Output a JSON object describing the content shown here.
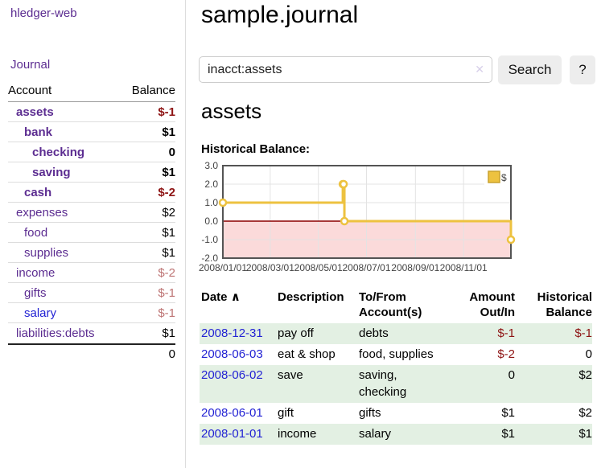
{
  "app": {
    "title": "hledger-web"
  },
  "sidebar": {
    "journal_label": "Journal",
    "accounts_table": {
      "account_header": "Account",
      "balance_header": "Balance",
      "rows": [
        {
          "name": "assets",
          "level": 1,
          "bold": true,
          "link_state": "visited",
          "balance": "$-1",
          "balance_class": "negstrong"
        },
        {
          "name": "bank",
          "level": 2,
          "bold": true,
          "link_state": "visited",
          "balance": "$1",
          "balance_class": ""
        },
        {
          "name": "checking",
          "level": 3,
          "bold": true,
          "link_state": "visited",
          "balance": "0",
          "balance_class": ""
        },
        {
          "name": "saving",
          "level": 3,
          "bold": true,
          "link_state": "visited",
          "balance": "$1",
          "balance_class": ""
        },
        {
          "name": "cash",
          "level": 2,
          "bold": true,
          "link_state": "visited",
          "balance": "$-2",
          "balance_class": "negstrong"
        },
        {
          "name": "expenses",
          "level": 1,
          "bold": false,
          "link_state": "visited",
          "balance": "$2",
          "balance_class": ""
        },
        {
          "name": "food",
          "level": 2,
          "bold": false,
          "link_state": "visited",
          "balance": "$1",
          "balance_class": ""
        },
        {
          "name": "supplies",
          "level": 2,
          "bold": false,
          "link_state": "visited",
          "balance": "$1",
          "balance_class": ""
        },
        {
          "name": "income",
          "level": 1,
          "bold": false,
          "link_state": "visited",
          "balance": "$-2",
          "balance_class": "negmuted"
        },
        {
          "name": "gifts",
          "level": 2,
          "bold": false,
          "link_state": "visited",
          "balance": "$-1",
          "balance_class": "negmuted"
        },
        {
          "name": "salary",
          "level": 2,
          "bold": false,
          "link_state": "unvisited",
          "balance": "$-1",
          "balance_class": "negmuted"
        },
        {
          "name": "liabilities:debts",
          "level": 1,
          "bold": false,
          "link_state": "visited",
          "balance": "$1",
          "balance_class": ""
        }
      ],
      "total": "0"
    }
  },
  "main": {
    "title": "sample.journal",
    "search": {
      "value": "inacct:assets",
      "clear_icon": "✕",
      "button_label": "Search",
      "help_label": "?"
    },
    "account_heading": "assets",
    "chart_label": "Historical Balance:"
  },
  "chart_data": {
    "type": "line",
    "step": true,
    "title": "Historical Balance:",
    "series": [
      {
        "name": "$",
        "color": "#edc240",
        "points": [
          [
            "2008-01-01",
            1
          ],
          [
            "2008-06-01",
            2
          ],
          [
            "2008-06-02",
            2
          ],
          [
            "2008-06-03",
            0
          ],
          [
            "2008-12-31",
            -1
          ]
        ]
      }
    ],
    "x_domain": [
      "2008-01-01",
      "2008-12-31"
    ],
    "y_domain": [
      -2,
      3
    ],
    "y_ticks": [
      {
        "v": 3,
        "label": "3.0"
      },
      {
        "v": 2,
        "label": "2.0"
      },
      {
        "v": 1,
        "label": "1.0"
      },
      {
        "v": 0,
        "label": "0.0"
      },
      {
        "v": -1,
        "label": "-1.0"
      },
      {
        "v": -2,
        "label": "-2.0"
      }
    ],
    "x_ticks": [
      {
        "date": "2008-01-01",
        "label": "2008/01/01"
      },
      {
        "date": "2008-03-01",
        "label": "2008/03/01"
      },
      {
        "date": "2008-05-01",
        "label": "2008/05/01"
      },
      {
        "date": "2008-07-01",
        "label": "2008/07/01"
      },
      {
        "date": "2008-09-01",
        "label": "2008/09/01"
      },
      {
        "date": "2008-11-01",
        "label": "2008/11/01"
      }
    ],
    "legend": {
      "label": "$",
      "swatch_color": "#edc240",
      "position": "top-right"
    },
    "grid": true,
    "below_zero_fill": "#fbdada",
    "zero_line_color": "#8b0000",
    "grid_color": "#e3e3e3",
    "border_color": "#545454"
  },
  "register": {
    "headers": {
      "date": "Date",
      "sort_indicator": "∧",
      "description": "Description",
      "accounts": "To/From Account(s)",
      "amount": "Amount Out/In",
      "balance": "Historical Balance"
    },
    "rows": [
      {
        "date": "2008-12-31",
        "description": "pay off",
        "accounts": "debts",
        "amount": "$-1",
        "amount_negative": true,
        "balance": "$-1",
        "balance_negative": true
      },
      {
        "date": "2008-06-03",
        "description": "eat & shop",
        "accounts": "food, supplies",
        "amount": "$-2",
        "amount_negative": true,
        "balance": "0",
        "balance_negative": false
      },
      {
        "date": "2008-06-02",
        "description": "save",
        "accounts": "saving, checking",
        "amount": "0",
        "amount_negative": false,
        "balance": "$2",
        "balance_negative": false
      },
      {
        "date": "2008-06-01",
        "description": "gift",
        "accounts": "gifts",
        "amount": "$1",
        "amount_negative": false,
        "balance": "$2",
        "balance_negative": false
      },
      {
        "date": "2008-01-01",
        "description": "income",
        "accounts": "salary",
        "amount": "$1",
        "amount_negative": false,
        "balance": "$1",
        "balance_negative": false
      }
    ]
  },
  "colors": {
    "link_visited_purple": "#5c2d91",
    "link_blue": "#2323d4",
    "negative_strong": "#8e1414",
    "negative_muted": "#bd7474",
    "row_stripe_green": "#e3f0e3",
    "series_yellow": "#edc240",
    "below_zero_pink": "#fbdada",
    "zero_line_red": "#8b0000",
    "button_gray": "#ededed"
  }
}
